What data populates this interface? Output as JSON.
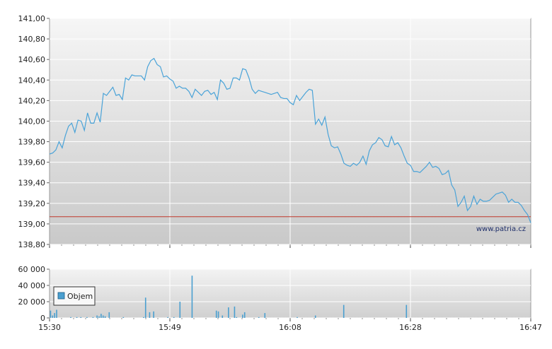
{
  "chart_data": [
    {
      "type": "line",
      "title": "",
      "xlabel": "",
      "ylabel": "",
      "ylim": [
        138.8,
        141.0
      ],
      "y_ticks": [
        "138,80",
        "139,00",
        "139,20",
        "139,40",
        "139,60",
        "139,80",
        "140,00",
        "140,20",
        "140,40",
        "140,60",
        "140,80",
        "141,00"
      ],
      "x_ticks": [
        "15:30",
        "15:49",
        "16:08",
        "16:28",
        "16:47"
      ],
      "reference_line": 139.07,
      "grid": true,
      "watermark": "www.patria.cz",
      "series": [
        {
          "values": [
            139.68,
            139.69,
            139.72,
            139.8,
            139.74,
            139.86,
            139.95,
            139.98,
            139.89,
            140.01,
            140.0,
            139.91,
            140.08,
            139.98,
            139.98,
            140.08,
            139.99,
            140.27,
            140.25,
            140.29,
            140.33,
            140.25,
            140.26,
            140.21,
            140.42,
            140.4,
            140.45,
            140.44,
            140.44,
            140.44,
            140.4,
            140.53,
            140.59,
            140.61,
            140.55,
            140.53,
            140.43,
            140.44,
            140.41,
            140.39,
            140.32,
            140.34,
            140.32,
            140.32,
            140.29,
            140.23,
            140.31,
            140.28,
            140.25,
            140.29,
            140.3,
            140.26,
            140.28,
            140.21,
            140.4,
            140.37,
            140.31,
            140.32,
            140.42,
            140.42,
            140.4,
            140.51,
            140.5,
            140.42,
            140.31,
            140.27,
            140.3,
            140.29,
            140.28,
            140.27,
            140.26,
            140.27,
            140.28,
            140.23,
            140.22,
            140.22,
            140.18,
            140.16,
            140.25,
            140.2,
            140.24,
            140.28,
            140.31,
            140.3,
            139.97,
            140.02,
            139.96,
            140.04,
            139.87,
            139.76,
            139.74,
            139.75,
            139.68,
            139.59,
            139.57,
            139.56,
            139.59,
            139.57,
            139.6,
            139.66,
            139.58,
            139.71,
            139.77,
            139.79,
            139.84,
            139.82,
            139.76,
            139.75,
            139.85,
            139.77,
            139.79,
            139.74,
            139.66,
            139.59,
            139.57,
            139.51,
            139.51,
            139.5,
            139.53,
            139.56,
            139.6,
            139.55,
            139.56,
            139.54,
            139.48,
            139.49,
            139.52,
            139.38,
            139.33,
            139.17,
            139.21,
            139.27,
            139.13,
            139.17,
            139.27,
            139.19,
            139.24,
            139.22,
            139.22,
            139.23,
            139.26,
            139.29,
            139.3,
            139.31,
            139.28,
            139.21,
            139.24,
            139.21,
            139.21,
            139.18,
            139.13,
            139.09,
            139.01
          ]
        }
      ]
    },
    {
      "type": "bar",
      "title": "",
      "xlabel": "",
      "ylabel": "",
      "ylim": [
        0,
        60000
      ],
      "y_ticks": [
        "0",
        "20 000",
        "40 000",
        "60 000"
      ],
      "x_ticks": [
        "15:30",
        "15:49",
        "16:08",
        "16:28",
        "16:47"
      ],
      "grid": true,
      "series": [
        {
          "name": "Objem",
          "color": "#4a9fd0",
          "values": [
            9000,
            3000,
            6000,
            10000,
            0,
            0,
            0,
            0,
            0,
            0,
            1000,
            0,
            0,
            1000,
            0,
            1000,
            0,
            0,
            1000,
            0,
            0,
            1000,
            0,
            3000,
            2000,
            5000,
            3000,
            2000,
            0,
            7000,
            0,
            0,
            0,
            0,
            0,
            0,
            1000,
            0,
            0,
            0,
            0,
            0,
            0,
            0,
            0,
            0,
            1000,
            25000,
            0,
            7000,
            0,
            8000,
            0,
            0,
            0,
            0,
            0,
            0,
            1000,
            0,
            0,
            1000,
            0,
            0,
            20000,
            0,
            0,
            0,
            0,
            0,
            52000,
            0,
            0,
            0,
            0,
            0,
            0,
            0,
            0,
            0,
            0,
            0,
            9000,
            8000,
            0,
            3000,
            0,
            0,
            13000,
            0,
            0,
            14000,
            1000,
            0,
            0,
            4000,
            7000,
            0,
            0,
            0,
            0,
            0,
            0,
            1000,
            0,
            0,
            6000,
            0,
            0,
            0,
            0,
            0,
            0,
            0,
            0,
            0,
            0,
            0,
            0,
            0,
            0,
            0,
            1000,
            0,
            0,
            0,
            0,
            0,
            0,
            0,
            0,
            3000,
            0,
            0,
            0,
            0,
            0,
            0,
            0,
            0,
            0,
            0,
            0,
            0,
            0,
            16000,
            0,
            0,
            0,
            0,
            0,
            0,
            0,
            0,
            0,
            0,
            0,
            0,
            0,
            0,
            0,
            0,
            0,
            0,
            0,
            0,
            0,
            0,
            0,
            0,
            0,
            0,
            0,
            0,
            0,
            0,
            16000,
            0,
            0,
            0,
            0,
            0,
            0,
            0,
            0,
            0,
            0,
            0,
            0,
            0,
            0,
            0,
            0,
            0,
            0,
            0,
            0,
            0,
            0,
            0,
            0,
            0,
            0,
            0,
            0,
            0,
            0,
            0,
            0,
            0,
            0,
            0,
            0,
            0,
            0,
            0,
            0,
            0,
            0,
            0,
            0,
            0,
            0,
            0,
            0,
            0,
            0,
            0,
            0,
            0,
            0,
            0,
            0,
            0,
            0,
            0,
            0,
            0
          ]
        }
      ],
      "legend": {
        "position": "bottom-left",
        "label": "Objem"
      }
    }
  ]
}
